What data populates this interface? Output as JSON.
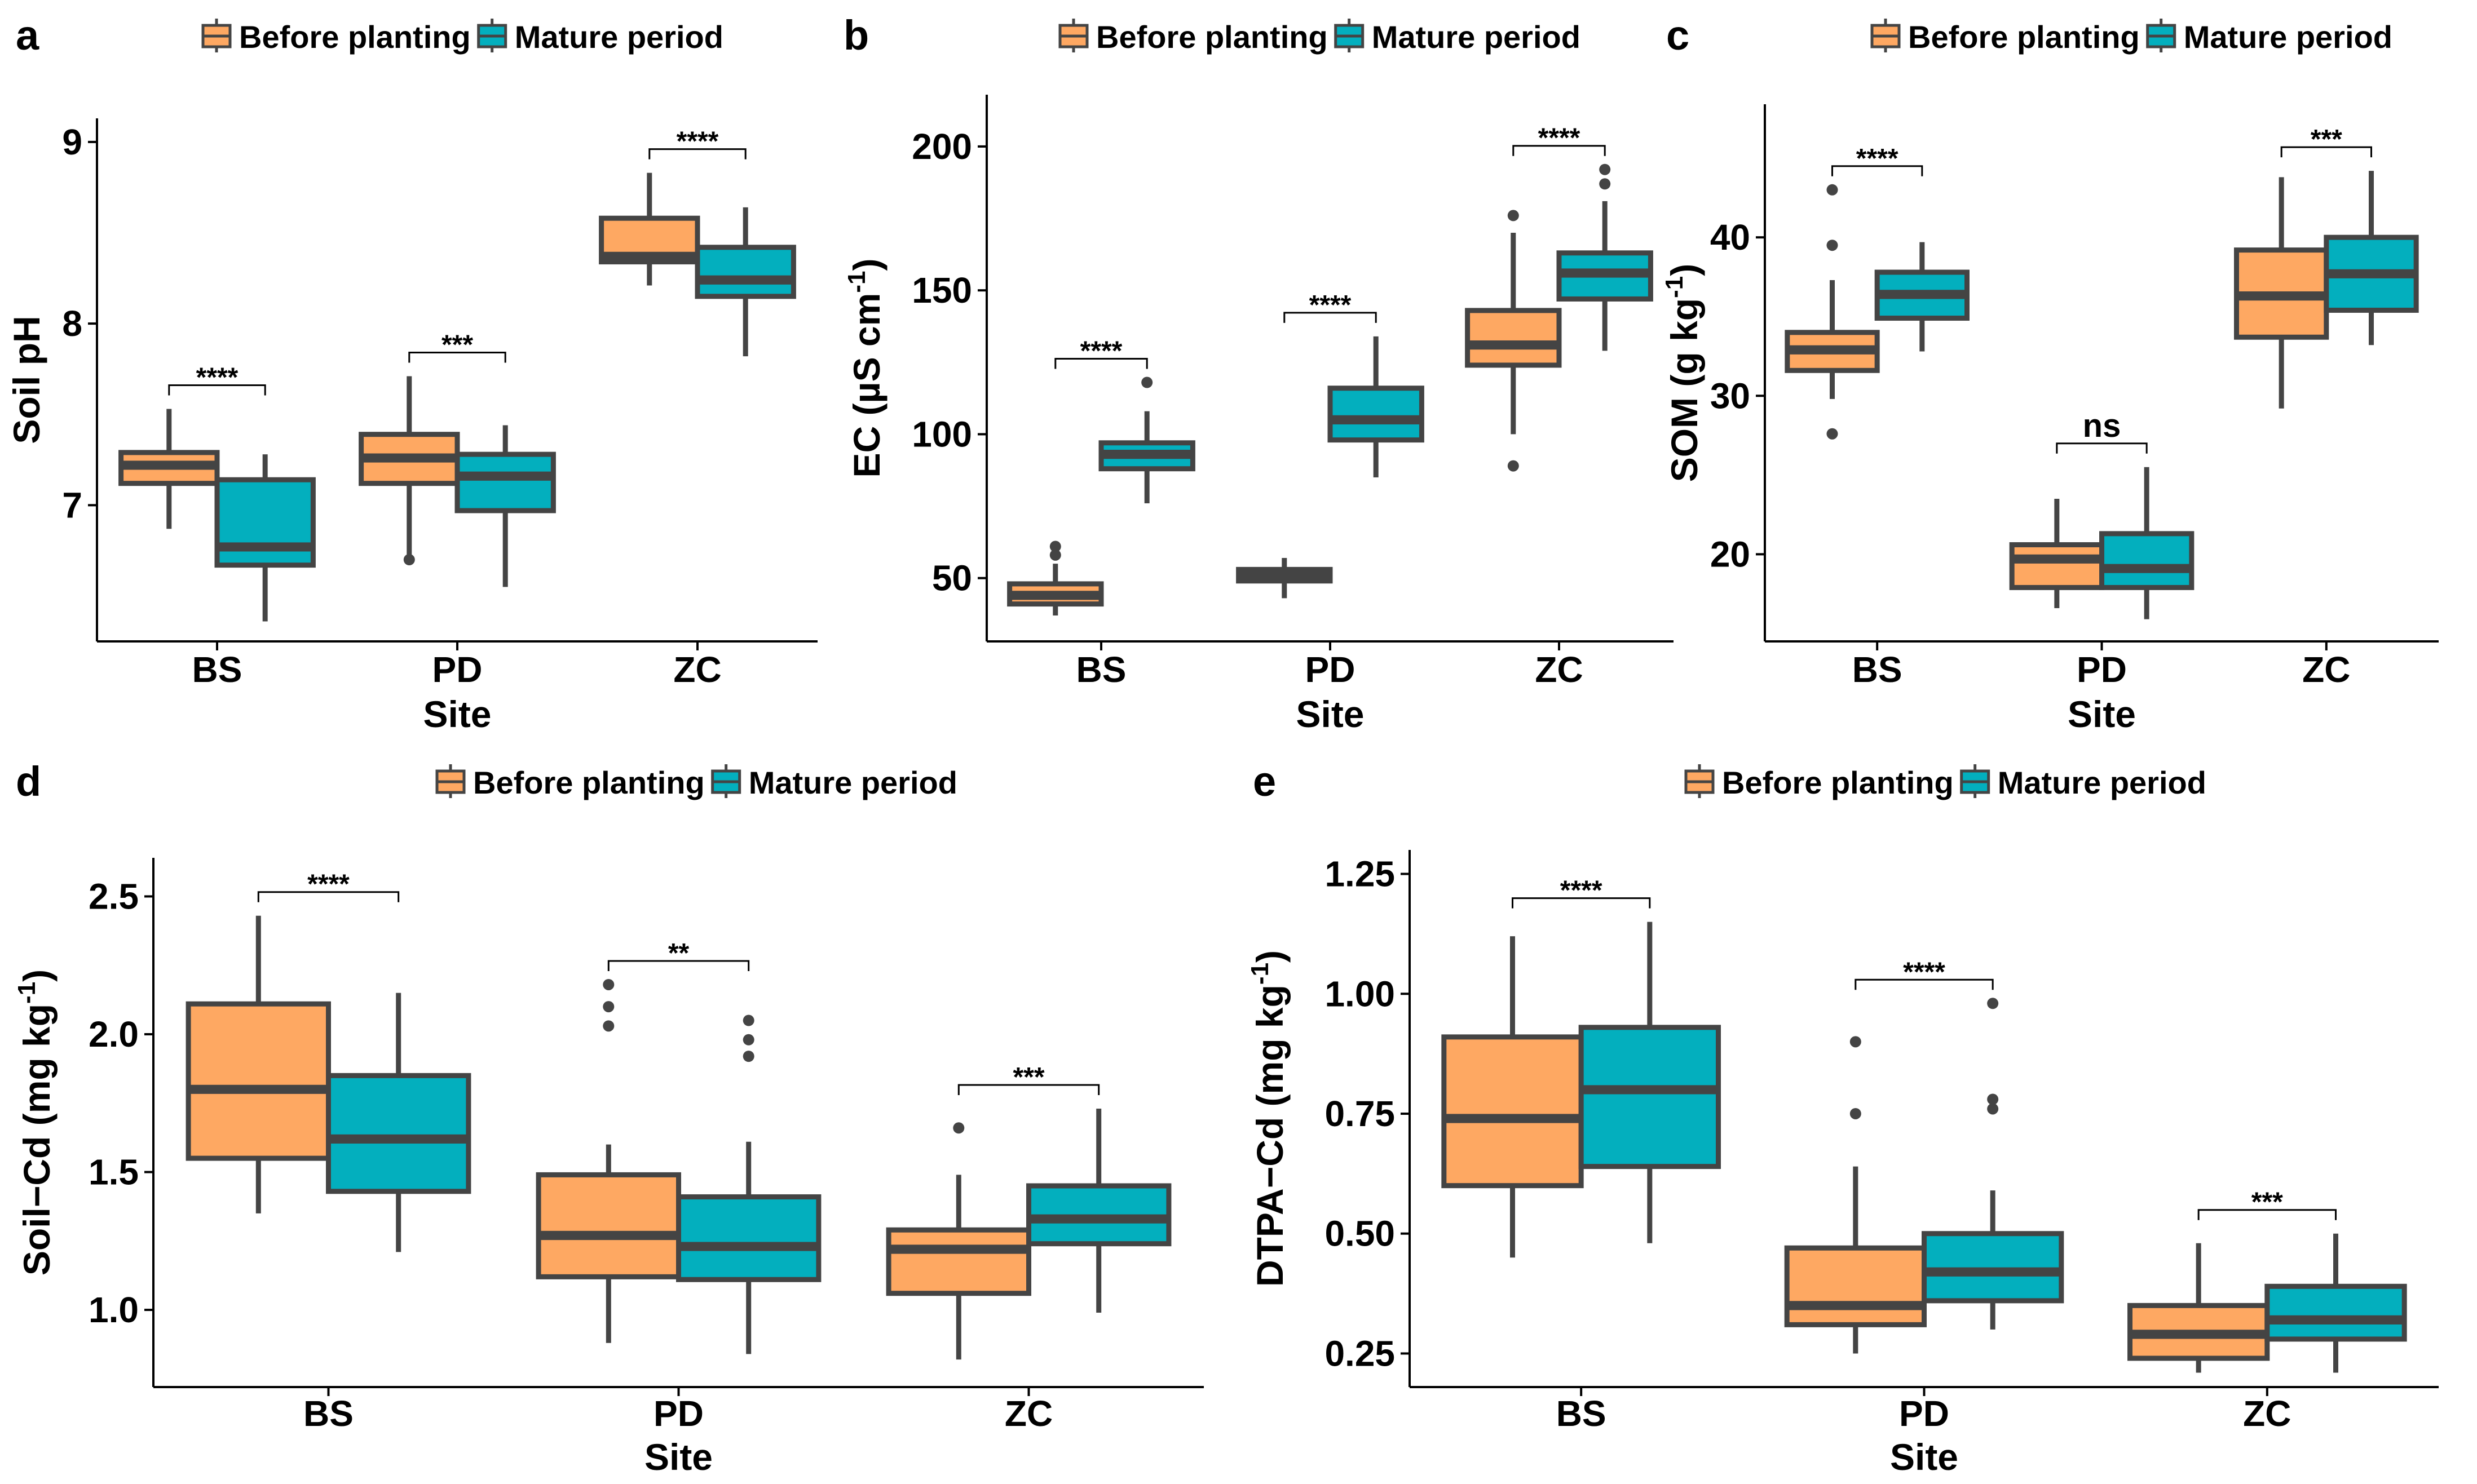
{
  "figure": {
    "legend": [
      "Before planting",
      "Mature period"
    ],
    "colors": {
      "before": "#FEA862",
      "mature": "#03AFBE",
      "outline": "#444444",
      "outlier": "#444444",
      "axis": "#000000"
    }
  },
  "chart_data": [
    {
      "type": "box",
      "panel_label": "a",
      "title": "",
      "xlabel": "Site",
      "ylabel": "Soil pH",
      "ylabel_sup": "",
      "ylim": [
        6.25,
        9.13
      ],
      "yticks": [
        7,
        8,
        9
      ],
      "ytick_labels": [
        "7",
        "8",
        "9"
      ],
      "categories": [
        "BS",
        "PD",
        "ZC"
      ],
      "legend": [
        "Before planting",
        "Mature period"
      ],
      "groups": [
        {
          "site": "BS",
          "significance": "****",
          "boxes": [
            {
              "series": "Before planting",
              "whisker_low": 6.87,
              "q1": 7.12,
              "median": 7.22,
              "q3": 7.29,
              "whisker_high": 7.53,
              "outliers": []
            },
            {
              "series": "Mature period",
              "whisker_low": 6.36,
              "q1": 6.67,
              "median": 6.77,
              "q3": 7.14,
              "whisker_high": 7.28,
              "outliers": []
            }
          ]
        },
        {
          "site": "PD",
          "significance": "***",
          "boxes": [
            {
              "series": "Before planting",
              "whisker_low": 6.72,
              "q1": 7.12,
              "median": 7.26,
              "q3": 7.39,
              "whisker_high": 7.71,
              "outliers": [
                6.7
              ]
            },
            {
              "series": "Mature period",
              "whisker_low": 6.55,
              "q1": 6.97,
              "median": 7.16,
              "q3": 7.28,
              "whisker_high": 7.44,
              "outliers": []
            }
          ]
        },
        {
          "site": "ZC",
          "significance": "****",
          "boxes": [
            {
              "series": "Before planting",
              "whisker_low": 8.21,
              "q1": 8.34,
              "median": 8.37,
              "q3": 8.58,
              "whisker_high": 8.83,
              "outliers": []
            },
            {
              "series": "Mature period",
              "whisker_low": 7.82,
              "q1": 8.15,
              "median": 8.24,
              "q3": 8.42,
              "whisker_high": 8.64,
              "outliers": []
            }
          ]
        }
      ]
    },
    {
      "type": "box",
      "panel_label": "b",
      "title": "",
      "xlabel": "Site",
      "ylabel": "EC (µS cm",
      "ylabel_sup": "-1",
      "ylabel_tail": ")",
      "ylim": [
        28,
        218
      ],
      "yticks": [
        50,
        100,
        150,
        200
      ],
      "ytick_labels": [
        "50",
        "100",
        "150",
        "200"
      ],
      "categories": [
        "BS",
        "PD",
        "ZC"
      ],
      "legend": [
        "Before planting",
        "Mature period"
      ],
      "groups": [
        {
          "site": "BS",
          "significance": "****",
          "boxes": [
            {
              "series": "Before planting",
              "whisker_low": 37,
              "q1": 41,
              "median": 44,
              "q3": 48,
              "whisker_high": 55,
              "outliers": [
                58,
                61
              ]
            },
            {
              "series": "Mature period",
              "whisker_low": 76,
              "q1": 88,
              "median": 93,
              "q3": 97,
              "whisker_high": 108,
              "outliers": [
                118
              ]
            }
          ]
        },
        {
          "site": "PD",
          "significance": "****",
          "boxes": [
            {
              "series": "Before planting",
              "whisker_low": 43,
              "q1": 49,
              "median": 51,
              "q3": 53,
              "whisker_high": 57,
              "outliers": []
            },
            {
              "series": "Mature period",
              "whisker_low": 85,
              "q1": 98,
              "median": 105,
              "q3": 116,
              "whisker_high": 134,
              "outliers": []
            }
          ]
        },
        {
          "site": "ZC",
          "significance": "****",
          "boxes": [
            {
              "series": "Before planting",
              "whisker_low": 100,
              "q1": 124,
              "median": 131,
              "q3": 143,
              "whisker_high": 170,
              "outliers": [
                89,
                176
              ]
            },
            {
              "series": "Mature period",
              "whisker_low": 129,
              "q1": 147,
              "median": 156,
              "q3": 163,
              "whisker_high": 181,
              "outliers": [
                187,
                192
              ]
            }
          ]
        }
      ]
    },
    {
      "type": "box",
      "panel_label": "c",
      "title": "",
      "xlabel": "Site",
      "ylabel": "SOM (g  kg",
      "ylabel_sup": "-1",
      "ylabel_tail": ")",
      "ylim": [
        14.5,
        48.4
      ],
      "yticks": [
        20,
        30,
        40
      ],
      "ytick_labels": [
        "20",
        "30",
        "40"
      ],
      "categories": [
        "BS",
        "PD",
        "ZC"
      ],
      "legend": [
        "Before planting",
        "Mature period"
      ],
      "groups": [
        {
          "site": "BS",
          "significance": "****",
          "boxes": [
            {
              "series": "Before planting",
              "whisker_low": 29.8,
              "q1": 31.6,
              "median": 32.9,
              "q3": 34.0,
              "whisker_high": 37.3,
              "outliers": [
                27.6,
                39.5,
                43.0
              ]
            },
            {
              "series": "Mature period",
              "whisker_low": 32.8,
              "q1": 34.9,
              "median": 36.4,
              "q3": 37.8,
              "whisker_high": 39.7,
              "outliers": []
            }
          ]
        },
        {
          "site": "PD",
          "significance": "ns",
          "boxes": [
            {
              "series": "Before planting",
              "whisker_low": 16.6,
              "q1": 17.9,
              "median": 19.7,
              "q3": 20.6,
              "whisker_high": 23.5,
              "outliers": []
            },
            {
              "series": "Mature period",
              "whisker_low": 15.9,
              "q1": 17.9,
              "median": 19.1,
              "q3": 21.3,
              "whisker_high": 25.5,
              "outliers": []
            }
          ]
        },
        {
          "site": "ZC",
          "significance": "***",
          "boxes": [
            {
              "series": "Before planting",
              "whisker_low": 29.2,
              "q1": 33.7,
              "median": 36.3,
              "q3": 39.2,
              "whisker_high": 43.8,
              "outliers": []
            },
            {
              "series": "Mature period",
              "whisker_low": 33.2,
              "q1": 35.4,
              "median": 37.7,
              "q3": 40.0,
              "whisker_high": 44.2,
              "outliers": []
            }
          ]
        }
      ]
    },
    {
      "type": "box",
      "panel_label": "d",
      "title": "",
      "xlabel": "Site",
      "ylabel": "Soil−Cd (mg  kg",
      "ylabel_sup": "-1",
      "ylabel_tail": ")",
      "ylim": [
        0.72,
        2.64
      ],
      "yticks": [
        1.0,
        1.5,
        2.0,
        2.5
      ],
      "ytick_labels": [
        "1.0",
        "1.5",
        "2.0",
        "2.5"
      ],
      "categories": [
        "BS",
        "PD",
        "ZC"
      ],
      "legend": [
        "Before planting",
        "Mature period"
      ],
      "groups": [
        {
          "site": "BS",
          "significance": "****",
          "boxes": [
            {
              "series": "Before planting",
              "whisker_low": 1.35,
              "q1": 1.55,
              "median": 1.8,
              "q3": 2.11,
              "whisker_high": 2.43,
              "outliers": []
            },
            {
              "series": "Mature period",
              "whisker_low": 1.21,
              "q1": 1.43,
              "median": 1.62,
              "q3": 1.85,
              "whisker_high": 2.15,
              "outliers": []
            }
          ]
        },
        {
          "site": "PD",
          "significance": "**",
          "boxes": [
            {
              "series": "Before planting",
              "whisker_low": 0.88,
              "q1": 1.12,
              "median": 1.27,
              "q3": 1.49,
              "whisker_high": 1.6,
              "outliers": [
                2.03,
                2.1,
                2.18
              ]
            },
            {
              "series": "Mature period",
              "whisker_low": 0.84,
              "q1": 1.11,
              "median": 1.23,
              "q3": 1.41,
              "whisker_high": 1.61,
              "outliers": [
                1.92,
                1.98,
                2.05
              ]
            }
          ]
        },
        {
          "site": "ZC",
          "significance": "***",
          "boxes": [
            {
              "series": "Before planting",
              "whisker_low": 0.82,
              "q1": 1.06,
              "median": 1.22,
              "q3": 1.29,
              "whisker_high": 1.49,
              "outliers": [
                1.66
              ]
            },
            {
              "series": "Mature period",
              "whisker_low": 0.99,
              "q1": 1.24,
              "median": 1.33,
              "q3": 1.45,
              "whisker_high": 1.73,
              "outliers": []
            }
          ]
        }
      ]
    },
    {
      "type": "box",
      "panel_label": "e",
      "title": "",
      "xlabel": "Site",
      "ylabel": "DTPA−Cd (mg  kg",
      "ylabel_sup": "-1",
      "ylabel_tail": ")",
      "ylim": [
        0.18,
        1.3
      ],
      "yticks": [
        0.25,
        0.5,
        0.75,
        1.0,
        1.25
      ],
      "ytick_labels": [
        "0.25",
        "0.50",
        "0.75",
        "1.00",
        "1.25"
      ],
      "categories": [
        "BS",
        "PD",
        "ZC"
      ],
      "legend": [
        "Before planting",
        "Mature period"
      ],
      "groups": [
        {
          "site": "BS",
          "significance": "****",
          "boxes": [
            {
              "series": "Before planting",
              "whisker_low": 0.45,
              "q1": 0.6,
              "median": 0.74,
              "q3": 0.91,
              "whisker_high": 1.12,
              "outliers": []
            },
            {
              "series": "Mature period",
              "whisker_low": 0.48,
              "q1": 0.64,
              "median": 0.8,
              "q3": 0.93,
              "whisker_high": 1.15,
              "outliers": []
            }
          ]
        },
        {
          "site": "PD",
          "significance": "****",
          "boxes": [
            {
              "series": "Before planting",
              "whisker_low": 0.25,
              "q1": 0.31,
              "median": 0.35,
              "q3": 0.47,
              "whisker_high": 0.64,
              "outliers": [
                0.75,
                0.9
              ]
            },
            {
              "series": "Mature period",
              "whisker_low": 0.3,
              "q1": 0.36,
              "median": 0.42,
              "q3": 0.5,
              "whisker_high": 0.59,
              "outliers": [
                0.76,
                0.78,
                0.98
              ]
            }
          ]
        },
        {
          "site": "ZC",
          "significance": "***",
          "boxes": [
            {
              "series": "Before planting",
              "whisker_low": 0.21,
              "q1": 0.24,
              "median": 0.29,
              "q3": 0.35,
              "whisker_high": 0.48,
              "outliers": []
            },
            {
              "series": "Mature period",
              "whisker_low": 0.21,
              "q1": 0.28,
              "median": 0.32,
              "q3": 0.39,
              "whisker_high": 0.5,
              "outliers": []
            }
          ]
        }
      ]
    }
  ]
}
